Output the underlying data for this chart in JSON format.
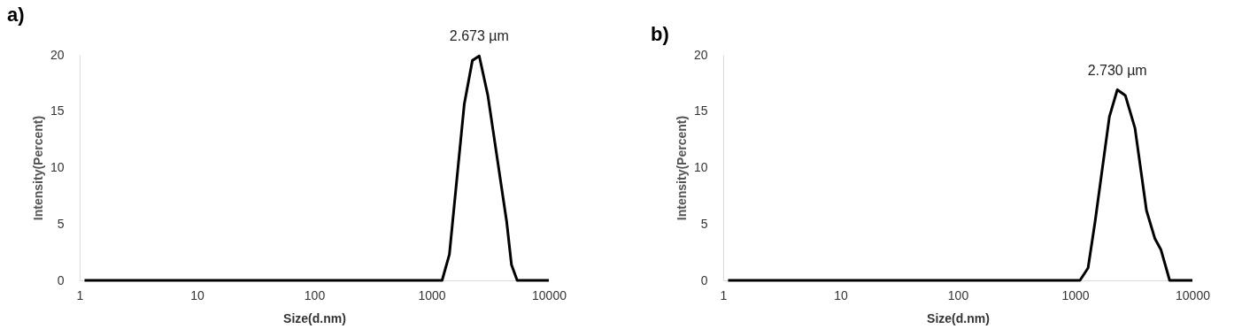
{
  "chart_data": [
    {
      "type": "line",
      "xlabel": "Size(d.nm)",
      "ylabel": "Intensity(Percent)",
      "log": "x",
      "color": "#000000",
      "x": [
        1.1,
        1230,
        1420,
        1900,
        2230,
        2550,
        3020,
        4370,
        4800,
        5370,
        10000
      ],
      "values": [
        0,
        0,
        2.3,
        15.6,
        19.5,
        19.9,
        16.4,
        5.2,
        1.4,
        0,
        0
      ],
      "xlim": [
        1,
        10000
      ],
      "xticks": [
        1,
        10,
        100,
        1000,
        10000
      ],
      "ylim": [
        0,
        20
      ],
      "yticks": [
        0,
        5,
        10,
        15,
        20
      ],
      "annotations": [
        "a)",
        {
          "text": "2.673 µm",
          "x": 2550,
          "y": 19.9
        }
      ]
    },
    {
      "type": "line",
      "xlabel": "Size(d.nm)",
      "ylabel": "Intensity(Percent)",
      "log": "x",
      "color": "#000000",
      "x": [
        1.1,
        1100,
        1290,
        1480,
        1960,
        2290,
        2680,
        3240,
        4060,
        4790,
        5400,
        6400,
        10000
      ],
      "values": [
        0,
        0,
        1.1,
        5.2,
        14.5,
        16.9,
        16.4,
        13.5,
        6.2,
        3.7,
        2.7,
        0,
        0
      ],
      "xlim": [
        1,
        10000
      ],
      "xticks": [
        1,
        10,
        100,
        1000,
        10000
      ],
      "ylim": [
        0,
        20
      ],
      "yticks": [
        0,
        5,
        10,
        15,
        20
      ],
      "annotations": [
        "b)",
        {
          "text": "2.730 µm",
          "x": 2290,
          "y": 16.9
        }
      ]
    }
  ]
}
